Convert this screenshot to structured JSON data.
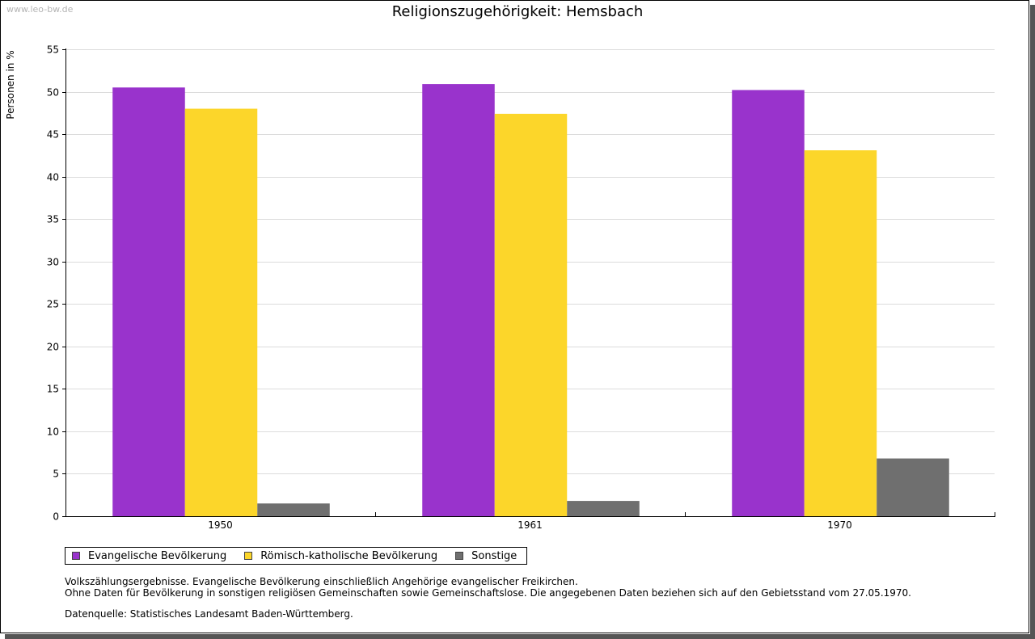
{
  "watermark": "www.leo-bw.de",
  "chart_data": {
    "type": "bar",
    "title": "Religionszugehörigkeit: Hemsbach",
    "ylabel": "Personen in %",
    "xlabel": "",
    "ylim": [
      0,
      55
    ],
    "yticks": [
      0,
      5,
      10,
      15,
      20,
      25,
      30,
      35,
      40,
      45,
      50,
      55
    ],
    "grid": true,
    "legend_position": "bottom-left",
    "categories": [
      "1950",
      "1961",
      "1970"
    ],
    "series": [
      {
        "name": "Evangelische Bevölkerung",
        "color": "#9933cc",
        "values": [
          50.5,
          50.9,
          50.2
        ]
      },
      {
        "name": "Römisch-katholische Bevölkerung",
        "color": "#fcd62a",
        "values": [
          48.0,
          47.4,
          43.1
        ]
      },
      {
        "name": "Sonstige",
        "color": "#6f6f6f",
        "values": [
          1.5,
          1.8,
          6.8
        ]
      }
    ]
  },
  "notes": {
    "line1": "Volkszählungsergebnisse. Evangelische Bevölkerung einschließlich Angehörige evangelischer Freikirchen.",
    "line2": "Ohne Daten für Bevölkerung in sonstigen religiösen Gemeinschaften sowie Gemeinschaftslose. Die angegebenen Daten beziehen sich auf den Gebietsstand vom 27.05.1970.",
    "source": "Datenquelle: Statistisches Landesamt Baden-Württemberg."
  }
}
